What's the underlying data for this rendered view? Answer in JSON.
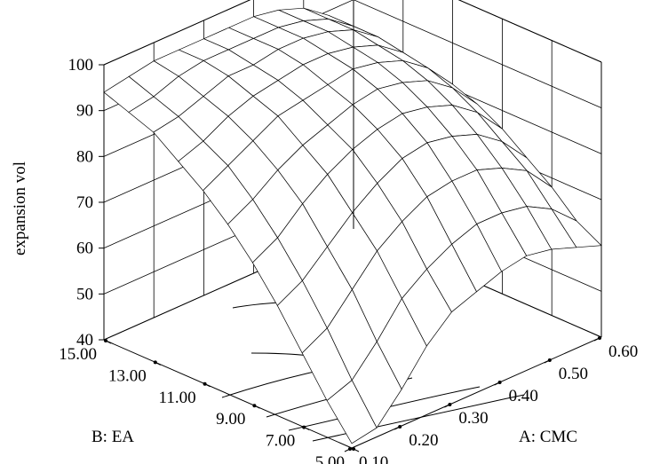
{
  "chart_data": {
    "type": "surface3d",
    "title": "",
    "zlabel": "expansion vol",
    "xlabel": "A: CMC",
    "ylabel": "B: EA",
    "x_ticks": [
      "0.10",
      "0.20",
      "0.30",
      "0.40",
      "0.50",
      "0.60"
    ],
    "y_ticks": [
      "5.00",
      "7.00",
      "9.00",
      "11.00",
      "13.00",
      "15.00"
    ],
    "z_ticks": [
      "40",
      "50",
      "60",
      "70",
      "80",
      "90",
      "100"
    ],
    "xlim": [
      0.1,
      0.6
    ],
    "ylim": [
      5,
      15
    ],
    "zlim": [
      40,
      100
    ],
    "grid": true,
    "surface": {
      "x": [
        0.1,
        0.15,
        0.2,
        0.25,
        0.3,
        0.35,
        0.4,
        0.45,
        0.5,
        0.55,
        0.6
      ],
      "y": [
        5,
        6,
        7,
        8,
        9,
        10,
        11,
        12,
        13,
        14,
        15
      ],
      "z": [
        [
          41,
          42,
          48,
          55,
          60,
          62,
          64,
          65,
          64,
          62,
          60
        ],
        [
          48,
          50,
          56,
          63,
          67,
          70,
          72,
          72,
          71,
          68,
          63
        ],
        [
          56,
          59,
          65,
          71,
          75,
          78,
          79,
          79,
          77,
          74,
          68
        ],
        [
          64,
          67,
          72,
          77,
          81,
          84,
          85,
          84,
          82,
          78,
          72
        ],
        [
          71,
          74,
          79,
          83,
          86,
          88,
          89,
          88,
          86,
          82,
          76
        ],
        [
          77,
          80,
          84,
          87,
          89,
          91,
          92,
          91,
          89,
          85,
          79
        ],
        [
          82,
          85,
          88,
          91,
          92,
          93,
          94,
          93,
          91,
          87,
          81
        ],
        [
          86,
          88,
          91,
          93,
          94,
          95,
          95,
          94,
          92,
          88,
          82
        ],
        [
          90,
          91,
          93,
          95,
          95,
          96,
          96,
          95,
          93,
          89,
          83
        ],
        [
          92,
          93,
          95,
          96,
          96,
          96,
          96,
          95,
          93,
          89,
          83
        ],
        [
          94,
          95,
          96,
          96,
          96,
          96,
          96,
          95,
          93,
          89,
          83
        ]
      ]
    }
  }
}
